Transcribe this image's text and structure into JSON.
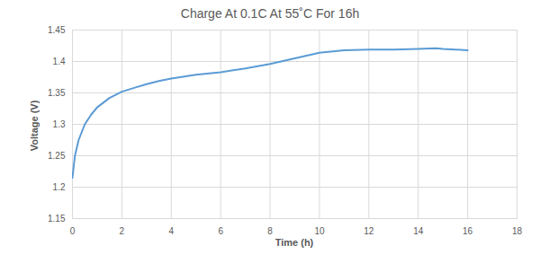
{
  "chart_data": {
    "type": "line",
    "title": "Charge At 0.1C At 55˚C For 16h",
    "x_label": "Time (h)",
    "y_label": "Voltage (V)",
    "x": [
      0,
      0.1,
      0.25,
      0.5,
      0.75,
      1,
      1.5,
      2,
      2.5,
      3,
      3.5,
      4,
      5,
      6,
      7,
      8,
      9,
      10,
      11,
      12,
      13,
      14,
      14.7,
      15,
      16
    ],
    "series": [
      {
        "name": "Voltage",
        "color": "#5b9bd5",
        "values": [
          1.215,
          1.25,
          1.275,
          1.3,
          1.315,
          1.327,
          1.342,
          1.352,
          1.358,
          1.364,
          1.369,
          1.373,
          1.379,
          1.383,
          1.389,
          1.396,
          1.405,
          1.414,
          1.418,
          1.419,
          1.419,
          1.42,
          1.421,
          1.42,
          1.418
        ]
      }
    ],
    "xlim": [
      0,
      18
    ],
    "xticks": [
      0,
      2,
      4,
      6,
      8,
      10,
      12,
      14,
      16,
      18
    ],
    "ylim": [
      1.15,
      1.45
    ],
    "yticks": [
      1.15,
      1.2,
      1.25,
      1.3,
      1.35,
      1.4,
      1.45
    ],
    "grid": true
  }
}
